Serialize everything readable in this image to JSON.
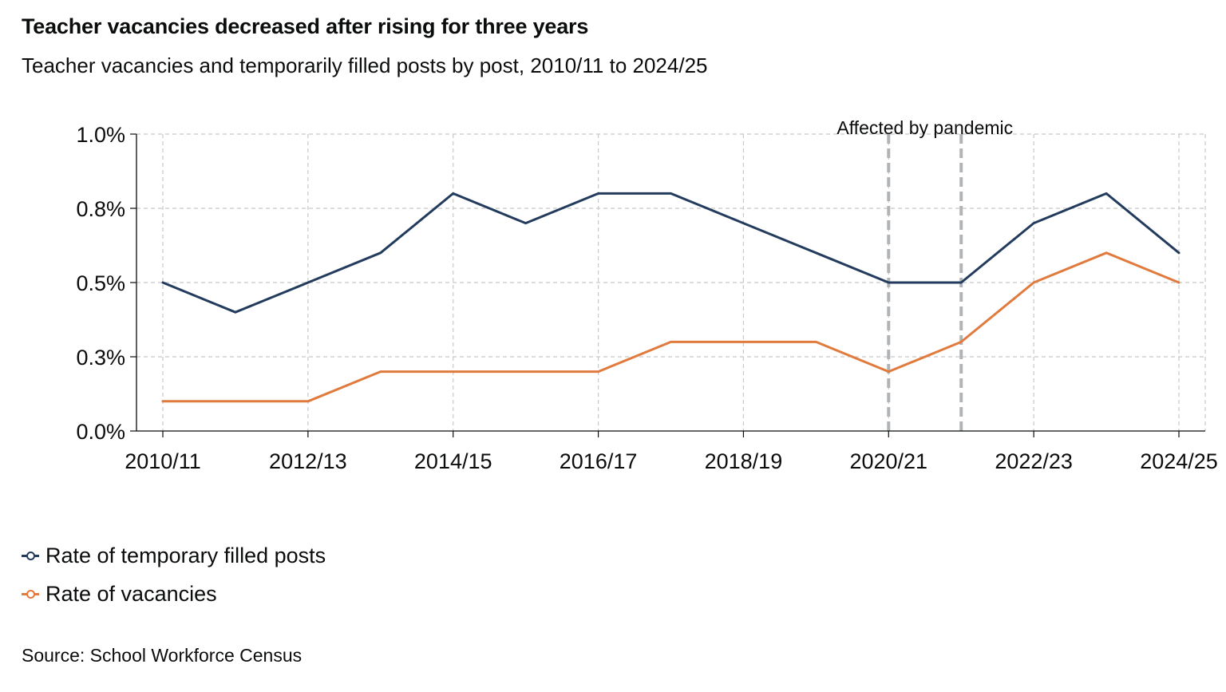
{
  "title": "Teacher vacancies decreased after rising for three years",
  "subtitle": "Teacher vacancies and temporarily filled posts by post, 2010/11 to 2024/25",
  "source": "Source: School Workforce Census",
  "chart_data": {
    "type": "line",
    "title": "Teacher vacancies decreased after rising for three years",
    "subtitle": "Teacher vacancies and temporarily filled posts by post, 2010/11 to 2024/25",
    "xlabel": "",
    "ylabel": "",
    "x": [
      "2010/11",
      "2011/12",
      "2012/13",
      "2013/14",
      "2014/15",
      "2015/16",
      "2016/17",
      "2017/18",
      "2018/19",
      "2019/20",
      "2020/21",
      "2021/22",
      "2022/23",
      "2023/24",
      "2024/25"
    ],
    "x_tick_labels": [
      "2010/11",
      "2012/13",
      "2014/15",
      "2016/17",
      "2018/19",
      "2020/21",
      "2022/23",
      "2024/25"
    ],
    "ylim": [
      0,
      1.0
    ],
    "y_ticks": [
      0,
      0.25,
      0.5,
      0.75,
      1.0
    ],
    "y_tick_labels": [
      "0.0%",
      "0.3%",
      "0.5%",
      "0.8%",
      "1.0%"
    ],
    "grid": true,
    "legend_position": "bottom-left",
    "series": [
      {
        "name": "Rate of temporary filled posts",
        "color": "#233c5e",
        "values": [
          0.5,
          0.4,
          0.5,
          0.6,
          0.8,
          0.7,
          0.8,
          0.8,
          0.7,
          0.6,
          0.5,
          0.5,
          0.7,
          0.8,
          0.6
        ]
      },
      {
        "name": "Rate of vacancies",
        "color": "#e07a3d",
        "values": [
          0.1,
          0.1,
          0.1,
          0.2,
          0.2,
          0.2,
          0.2,
          0.3,
          0.3,
          0.3,
          0.2,
          0.3,
          0.5,
          0.6,
          0.5
        ]
      }
    ],
    "annotations": [
      {
        "text": "Affected by pandemic",
        "x_start": "2020/21",
        "x_end": "2021/22",
        "style": "dashed-vertical-lines"
      }
    ]
  }
}
